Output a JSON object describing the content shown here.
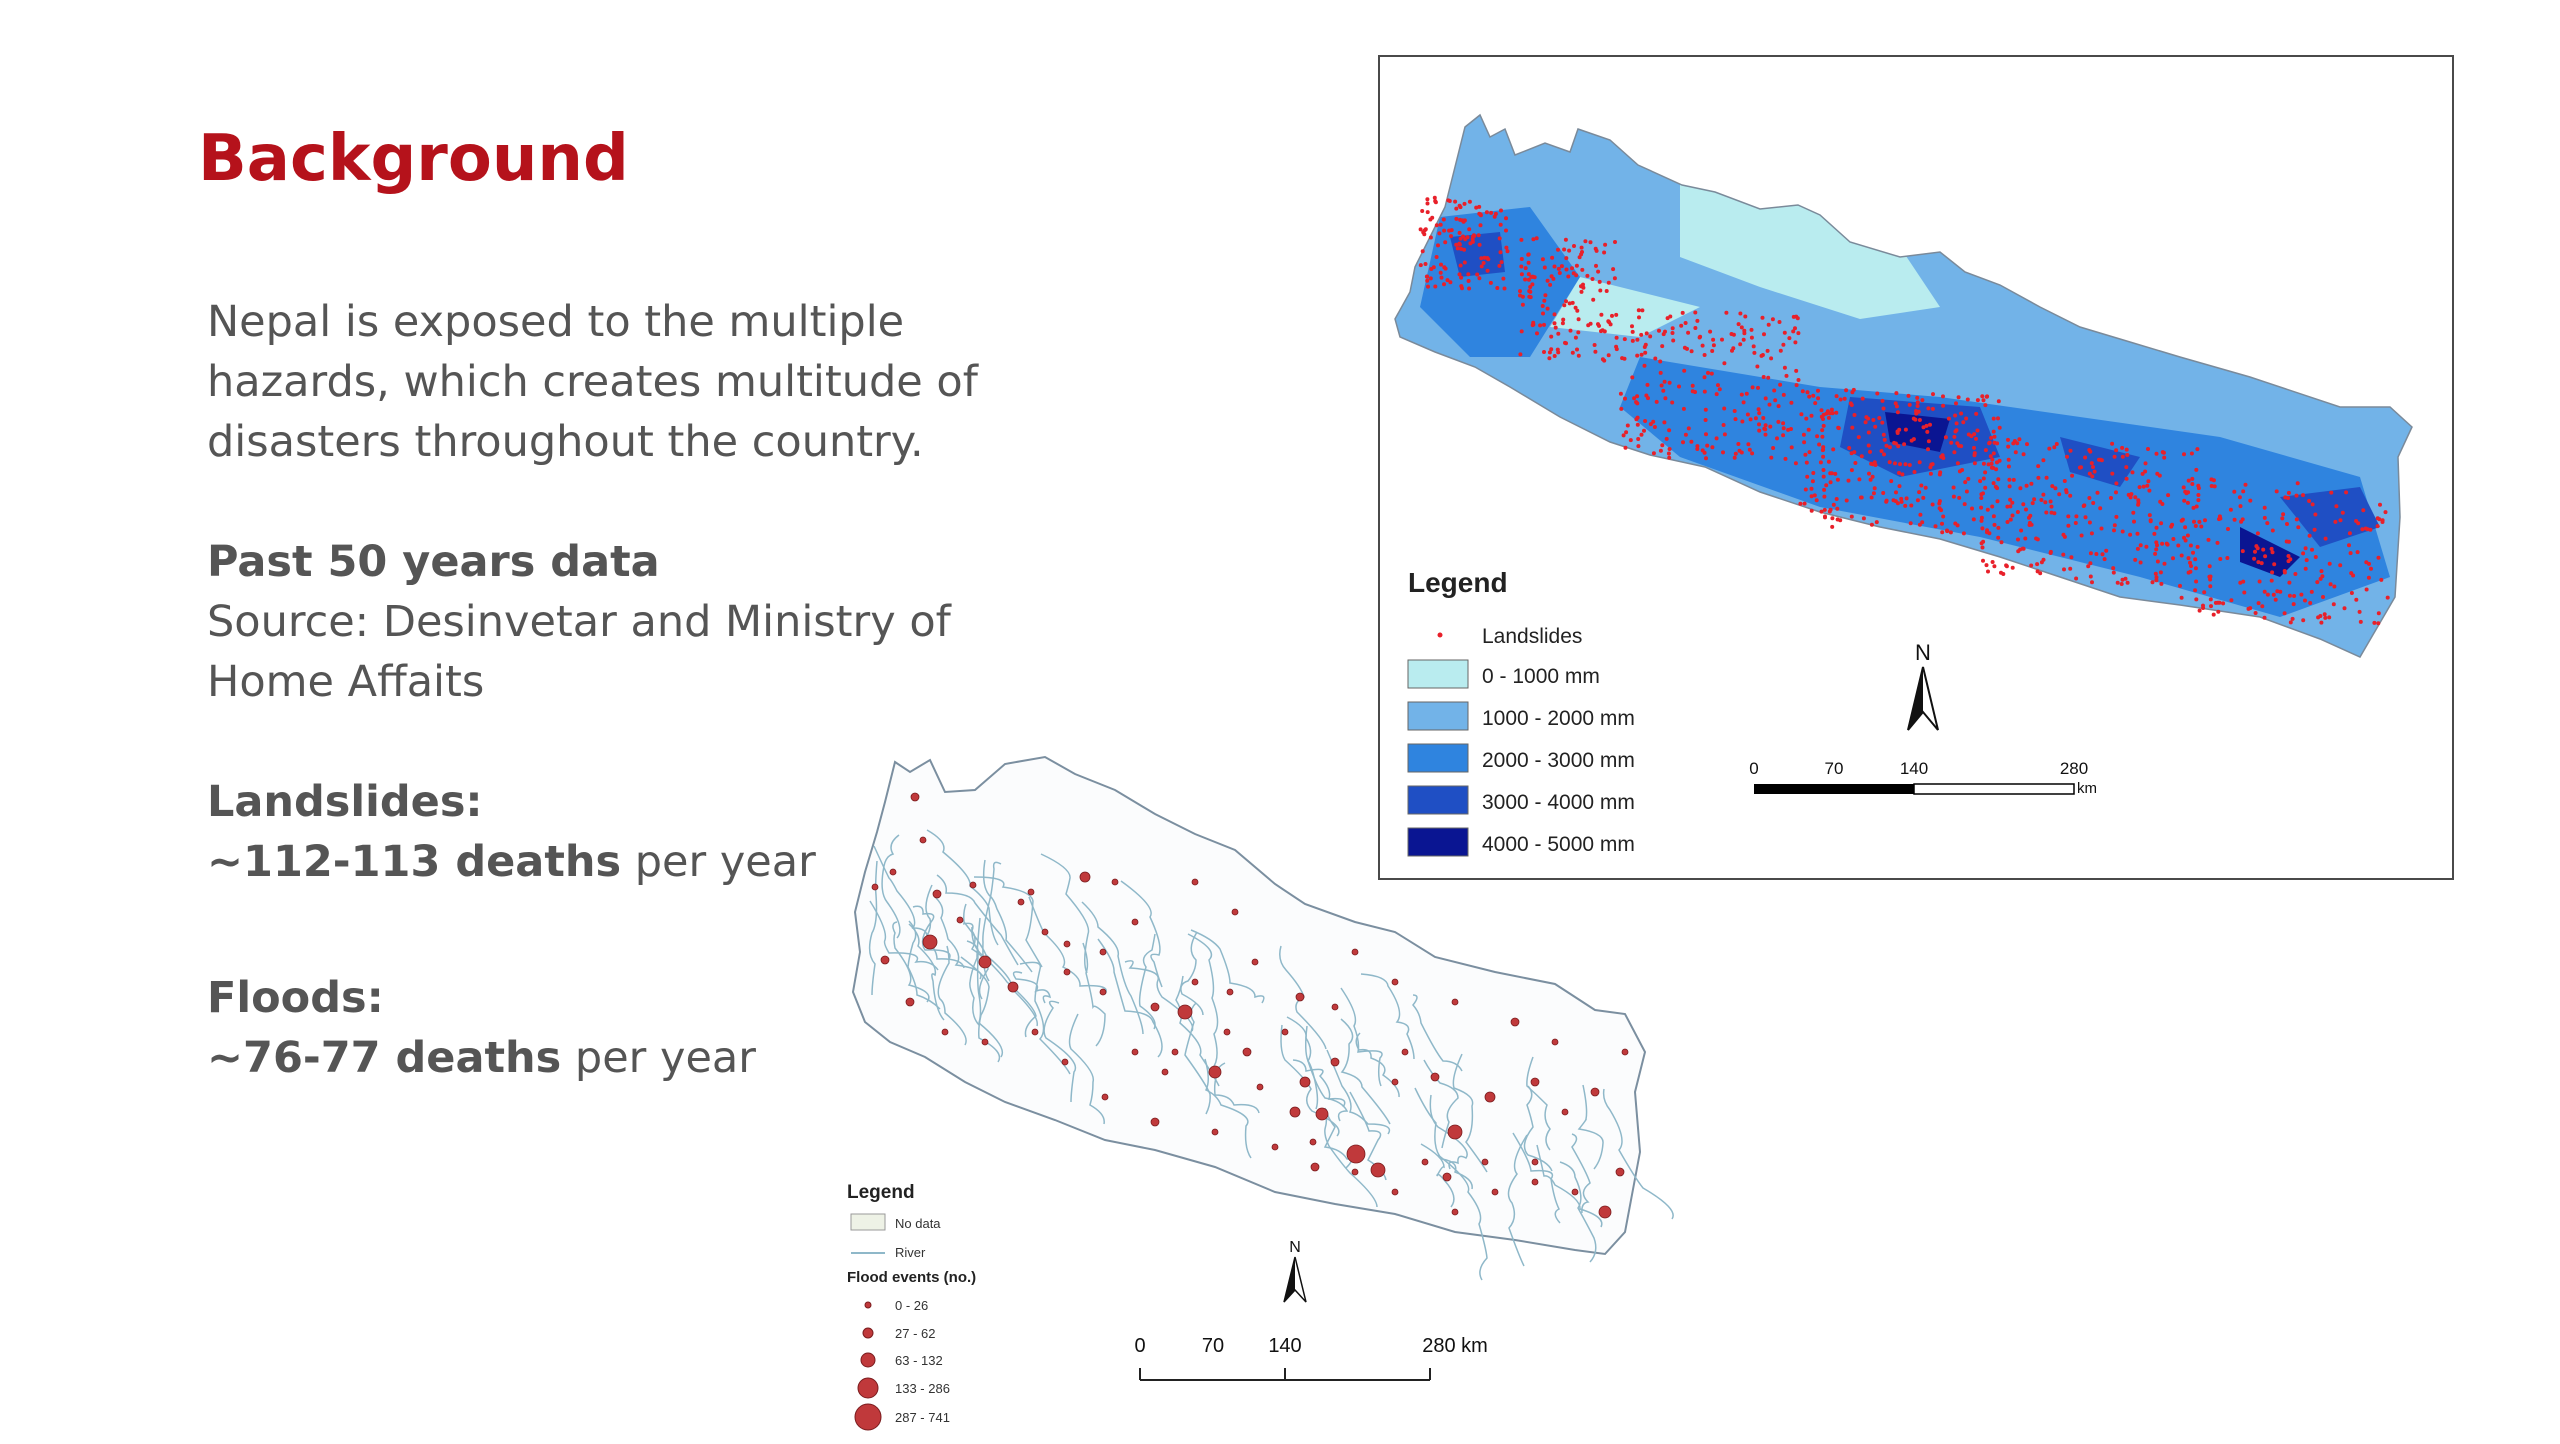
{
  "slide": {
    "title": "Background",
    "intro_lines": [
      "Nepal is exposed to the multiple",
      "hazards, which creates multitude of",
      "disasters throughout the country."
    ],
    "data_heading": "Past 50 years data",
    "source_lines": [
      "Source: Desinvetar and Ministry of",
      "Home Affaits"
    ],
    "landslides_heading": "Landslides:",
    "landslides_value": "~112-113 deaths",
    "landslides_suffix": " per year",
    "floods_heading": "Floods:",
    "floods_value": "~76-77 deaths",
    "floods_suffix": " per year"
  },
  "landslide_map": {
    "legend_title": "Legend",
    "points_label": "Landslides",
    "points_color": "#e8202a",
    "classes": [
      {
        "label": "0 - 1000 mm",
        "color": "#b9ecef"
      },
      {
        "label": "1000 - 2000 mm",
        "color": "#72b3e8"
      },
      {
        "label": "2000 - 3000 mm",
        "color": "#2f84df"
      },
      {
        "label": "3000 - 4000 mm",
        "color": "#1f4fc4"
      },
      {
        "label": "4000 - 5000 mm",
        "color": "#0a1592"
      }
    ],
    "north_label": "N",
    "scale_ticks": [
      "0",
      "70",
      "140",
      "280"
    ],
    "scale_unit": "km"
  },
  "flood_map": {
    "legend_title": "Legend",
    "nodata_label": "No data",
    "river_label": "River",
    "events_title": "Flood events (no.)",
    "event_classes": [
      "0 - 26",
      "27 - 62",
      "63 - 132",
      "133 - 286",
      "287 - 741"
    ],
    "point_color": "#c0393b",
    "river_color": "#8fb8c9",
    "north_label": "N",
    "scale_ticks": [
      "0",
      "70",
      "140",
      "280 km"
    ]
  }
}
